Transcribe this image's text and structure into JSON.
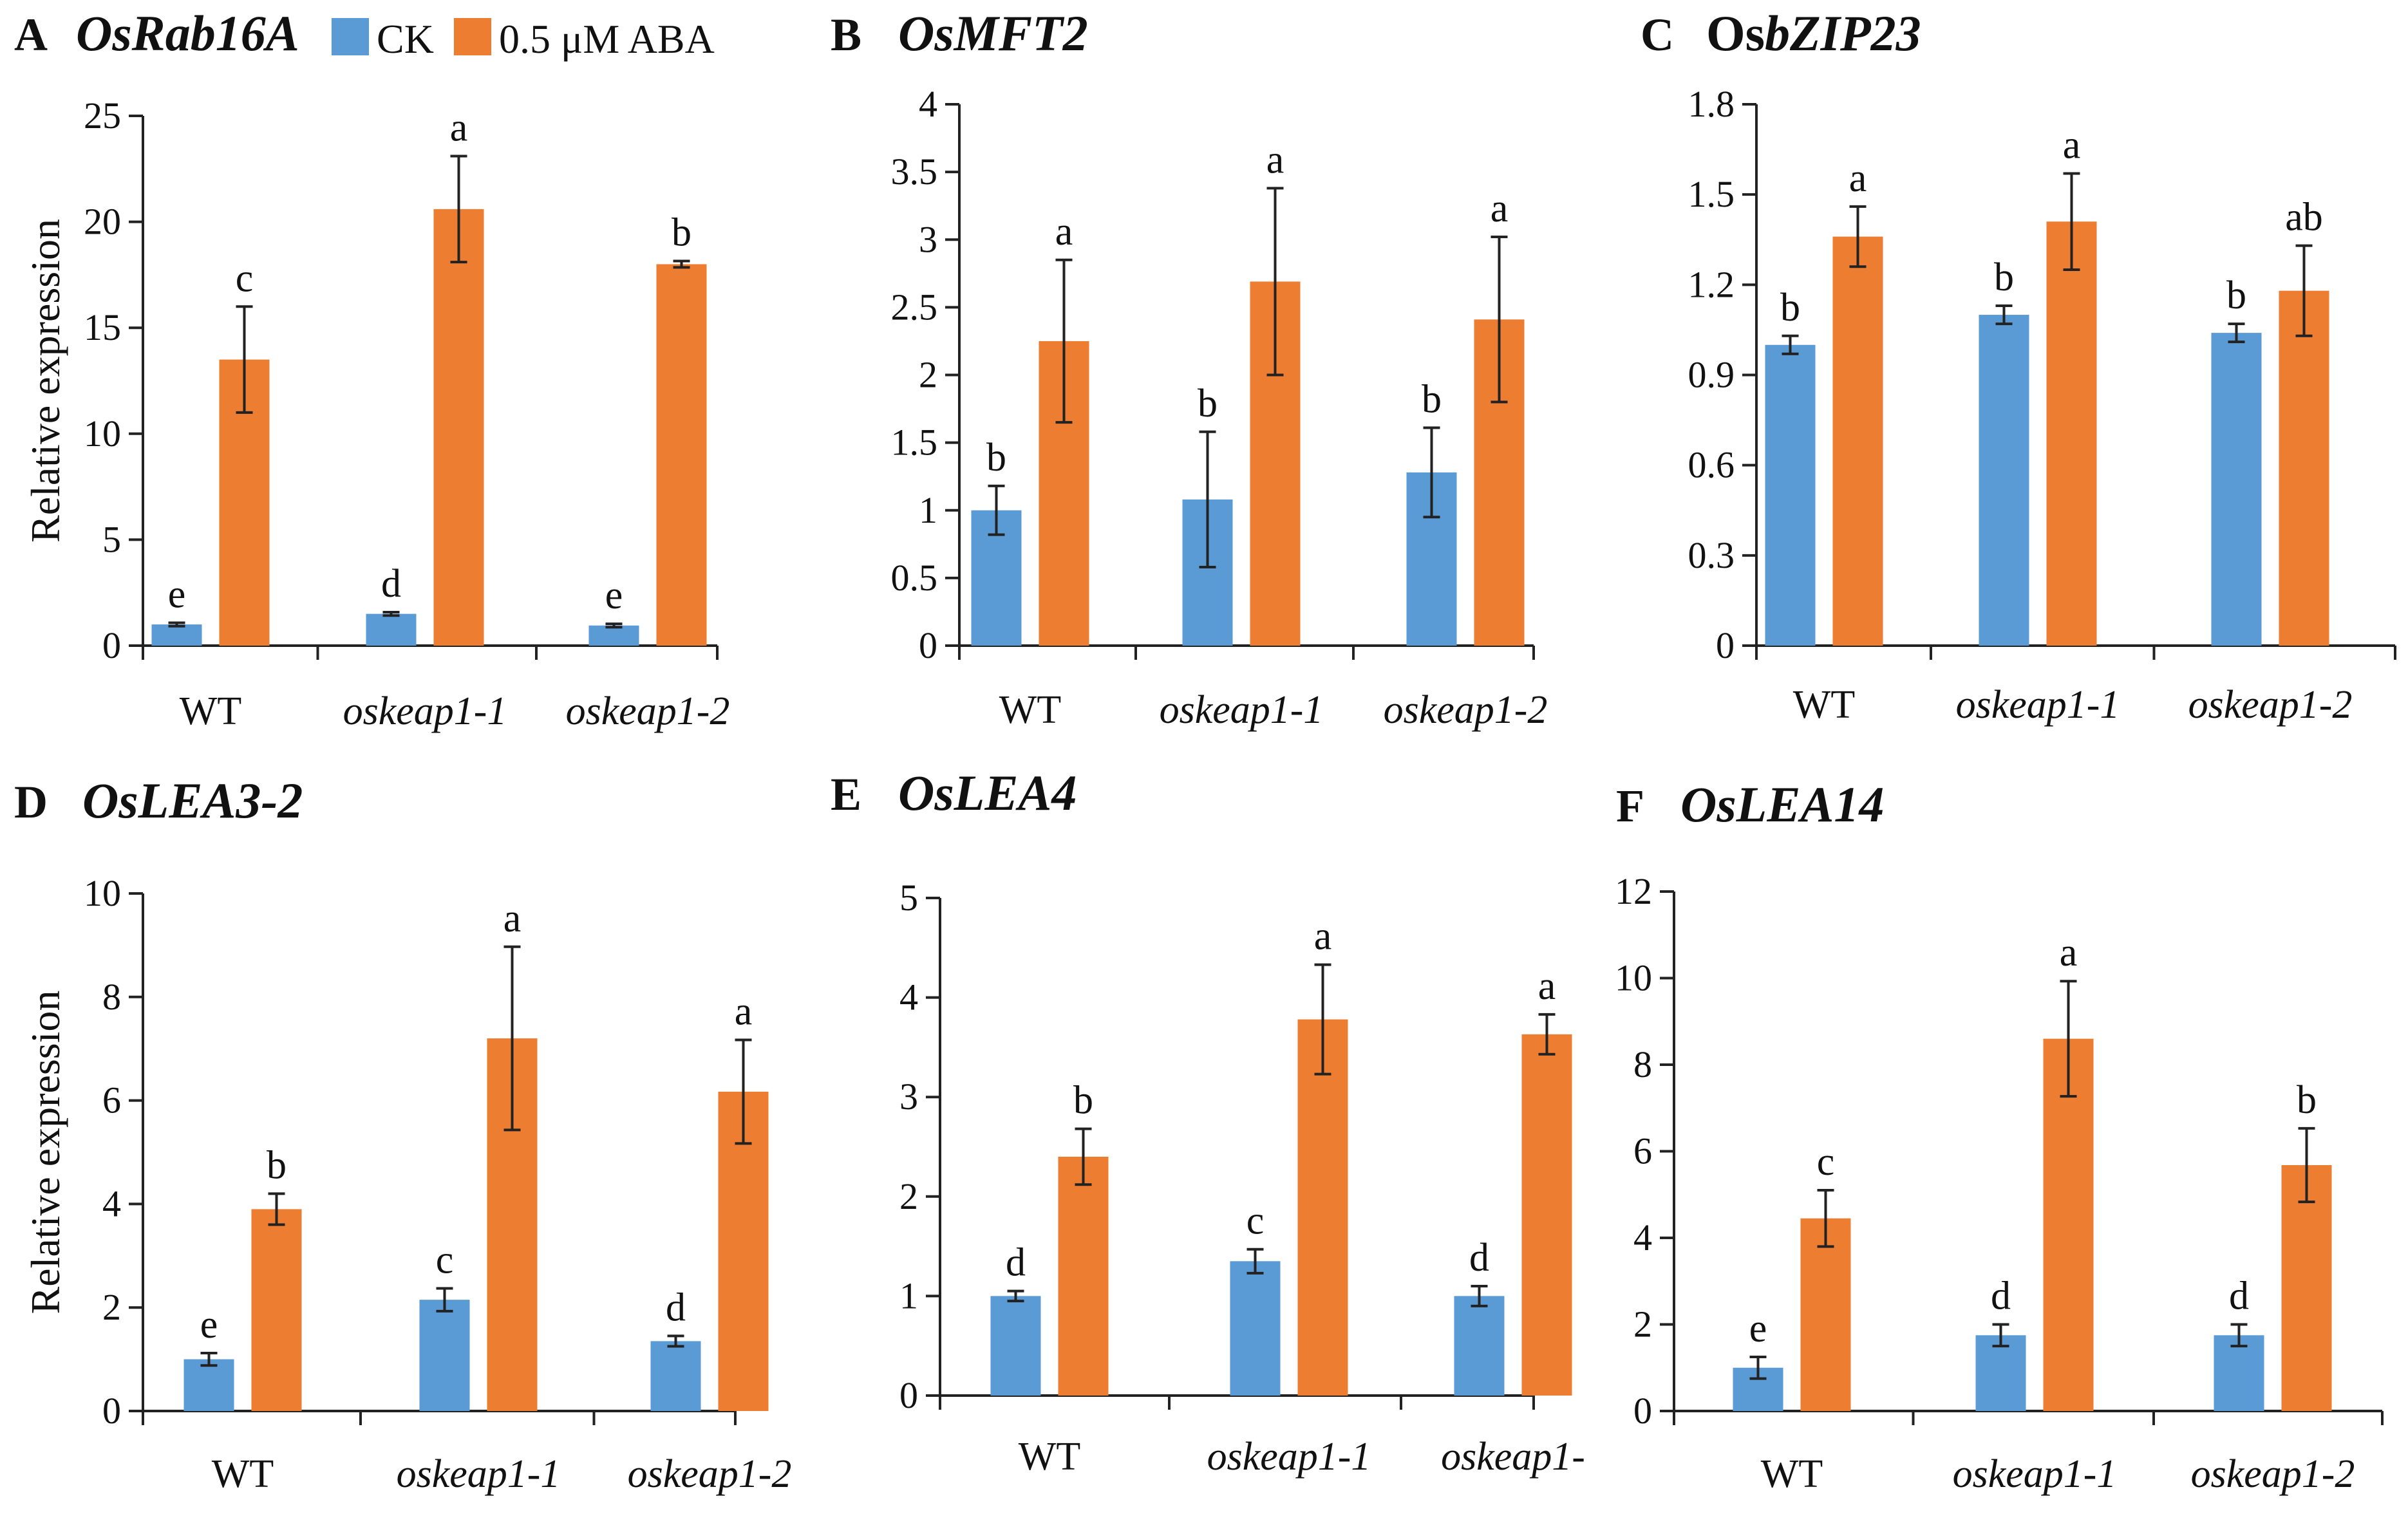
{
  "figure": {
    "colors": {
      "ck": "#5B9BD5",
      "aba": "#ED7D31",
      "axis": "#222222",
      "error": "#222222"
    }
  },
  "legend": {
    "entries": [
      {
        "label": "CK",
        "color": "#5B9BD5"
      },
      {
        "label": "0.5 μM ABA",
        "color": "#ED7D31"
      }
    ]
  },
  "chart_data": [
    {
      "panel": "A",
      "title_prefix": "",
      "title_upright": "",
      "title_italic": "OsRab16A",
      "type": "bar",
      "ylabel": "Relative expression",
      "ylim": [
        0,
        25
      ],
      "yticks": [
        "0",
        "5",
        "10",
        "15",
        "20",
        "25"
      ],
      "categories": [
        "WT",
        "oskeap1-1",
        "oskeap1-2"
      ],
      "series": [
        {
          "name": "CK",
          "values": [
            1.0,
            1.5,
            0.95
          ],
          "errors": [
            0.08,
            0.08,
            0.08
          ],
          "letters": [
            "e",
            "d",
            "e"
          ]
        },
        {
          "name": "0.5 μM ABA",
          "values": [
            13.5,
            20.6,
            18.0
          ],
          "errors": [
            2.5,
            2.5,
            0.15
          ],
          "letters": [
            "c",
            "a",
            "b"
          ]
        }
      ]
    },
    {
      "panel": "B",
      "title_prefix": "",
      "title_upright": "",
      "title_italic": "OsMFT2",
      "type": "bar",
      "ylabel": "",
      "ylim": [
        0,
        4
      ],
      "yticks": [
        "0",
        "0.5",
        "1",
        "1.5",
        "2",
        "2.5",
        "3",
        "3.5",
        "4"
      ],
      "categories": [
        "WT",
        "oskeap1-1",
        "oskeap1-2"
      ],
      "series": [
        {
          "name": "CK",
          "values": [
            1.0,
            1.08,
            1.28
          ],
          "errors": [
            0.18,
            0.5,
            0.33
          ],
          "letters": [
            "b",
            "b",
            "b"
          ]
        },
        {
          "name": "0.5 μM ABA",
          "values": [
            2.25,
            2.69,
            2.41
          ],
          "errors": [
            0.6,
            0.69,
            0.61
          ],
          "letters": [
            "a",
            "a",
            "a"
          ]
        }
      ]
    },
    {
      "panel": "C",
      "title_prefix": "",
      "title_upright": "Os",
      "title_italic": "bZIP23",
      "type": "bar",
      "ylabel": "",
      "ylim": [
        0,
        1.8
      ],
      "yticks": [
        "0",
        "0.3",
        "0.6",
        "0.9",
        "1.2",
        "1.5",
        "1.8"
      ],
      "categories": [
        "WT",
        "oskeap1-1",
        "oskeap1-2"
      ],
      "series": [
        {
          "name": "CK",
          "values": [
            1.0,
            1.1,
            1.04
          ],
          "errors": [
            0.03,
            0.03,
            0.03
          ],
          "letters": [
            "b",
            "b",
            "b"
          ]
        },
        {
          "name": "0.5 μM ABA",
          "values": [
            1.36,
            1.41,
            1.18
          ],
          "errors": [
            0.1,
            0.16,
            0.15
          ],
          "letters": [
            "a",
            "a",
            "ab"
          ]
        }
      ]
    },
    {
      "panel": "D",
      "title_prefix": "",
      "title_upright": "",
      "title_italic": "OsLEA3-2",
      "type": "bar",
      "ylabel": "Relative expression",
      "ylim": [
        0,
        10
      ],
      "yticks": [
        "0",
        "2",
        "4",
        "6",
        "8",
        "10"
      ],
      "categories": [
        "WT",
        "oskeap1-1",
        "oskeap1-2"
      ],
      "series": [
        {
          "name": "CK",
          "values": [
            1.0,
            2.15,
            1.35
          ],
          "errors": [
            0.12,
            0.22,
            0.1
          ],
          "letters": [
            "e",
            "c",
            "d"
          ]
        },
        {
          "name": "0.5 μM ABA",
          "values": [
            3.9,
            7.2,
            6.17
          ],
          "errors": [
            0.3,
            1.77,
            1.0
          ],
          "letters": [
            "b",
            "a",
            "a"
          ]
        }
      ]
    },
    {
      "panel": "E",
      "title_prefix": "",
      "title_upright": "",
      "title_italic": "OsLEA4",
      "type": "bar",
      "ylabel": "",
      "ylim": [
        0,
        5
      ],
      "yticks": [
        "0",
        "1",
        "2",
        "3",
        "4",
        "5"
      ],
      "categories": [
        "WT",
        "oskeap1-1",
        "oskeap1-"
      ],
      "series": [
        {
          "name": "CK",
          "values": [
            1.0,
            1.35,
            1.0
          ],
          "errors": [
            0.05,
            0.12,
            0.1
          ],
          "letters": [
            "d",
            "c",
            "d"
          ]
        },
        {
          "name": "0.5 μM ABA",
          "values": [
            2.4,
            3.78,
            3.63
          ],
          "errors": [
            0.28,
            0.55,
            0.2
          ],
          "letters": [
            "b",
            "a",
            "a"
          ]
        }
      ]
    },
    {
      "panel": "F",
      "title_prefix": "",
      "title_upright": "",
      "title_italic": "OsLEA14",
      "type": "bar",
      "ylabel": "",
      "ylim": [
        0,
        12
      ],
      "yticks": [
        "0",
        "2",
        "4",
        "6",
        "8",
        "10",
        "12"
      ],
      "categories": [
        "WT",
        "oskeap1-1",
        "oskeap1-2"
      ],
      "series": [
        {
          "name": "CK",
          "values": [
            1.0,
            1.75,
            1.75
          ],
          "errors": [
            0.25,
            0.25,
            0.25
          ],
          "letters": [
            "e",
            "d",
            "d"
          ]
        },
        {
          "name": "0.5 μM ABA",
          "values": [
            4.45,
            8.6,
            5.68
          ],
          "errors": [
            0.65,
            1.33,
            0.85
          ],
          "letters": [
            "c",
            "a",
            "b"
          ]
        }
      ]
    }
  ]
}
